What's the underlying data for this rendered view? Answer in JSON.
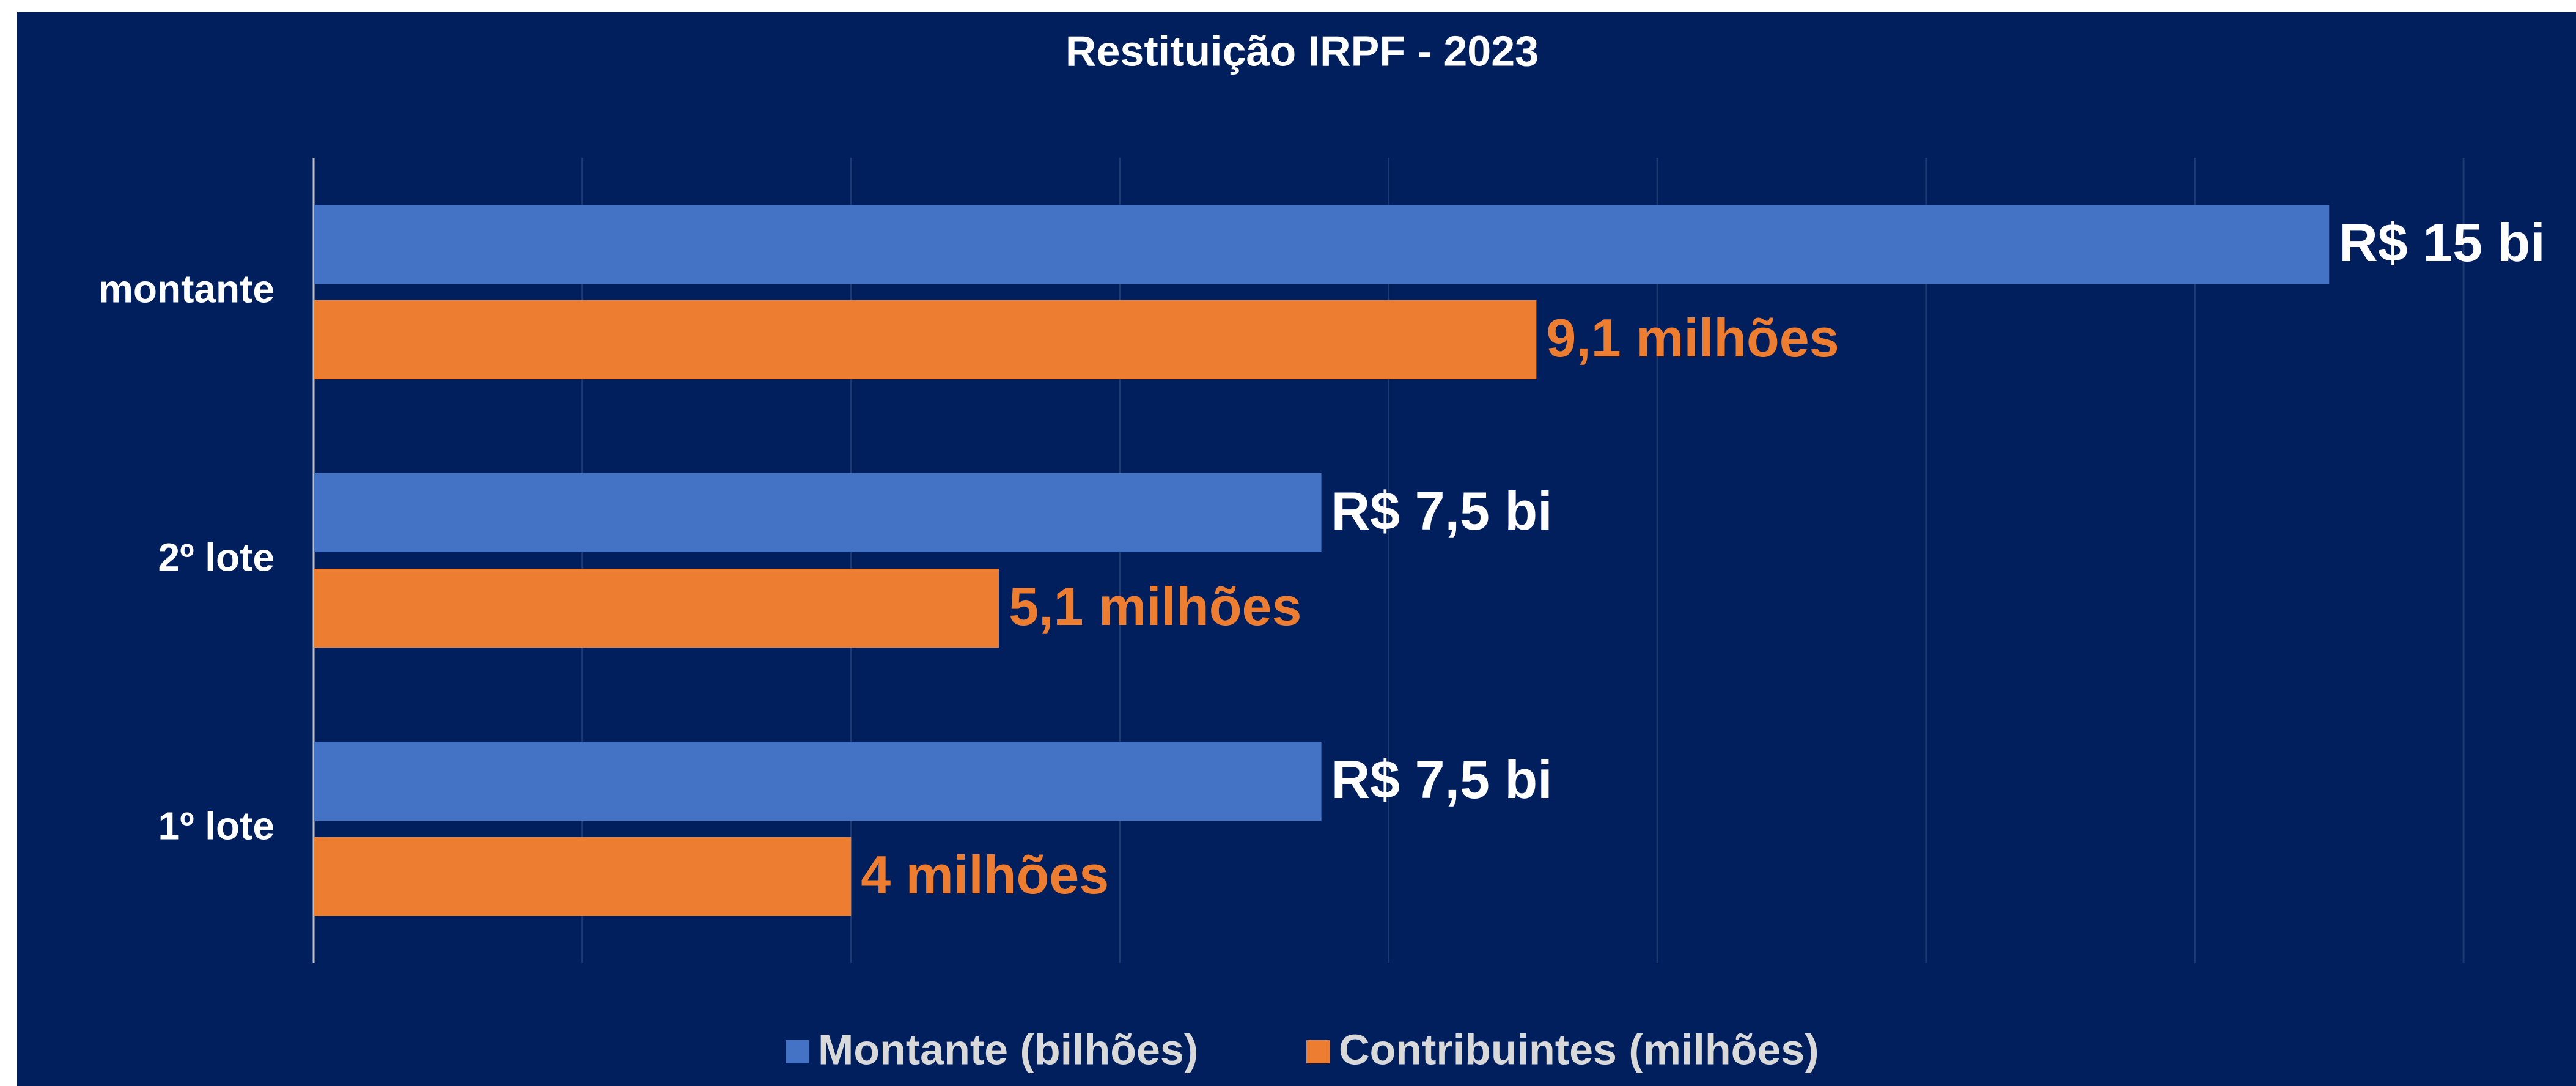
{
  "chart_data": {
    "type": "hbar",
    "title": "Restituição IRPF - 2023",
    "categories": [
      "montante",
      "2º lote",
      "1º lote"
    ],
    "series": [
      {
        "name": "Montante (bilhões)",
        "color": "#4472c4",
        "values": [
          15,
          7.5,
          7.5
        ],
        "value_labels": [
          "R$ 15 bi",
          "R$ 7,5 bi",
          "R$ 7,5 bi"
        ],
        "label_color": "#ffffff"
      },
      {
        "name": "Contribuintes (milhões)",
        "color": "#ed7d31",
        "values": [
          9.1,
          5.1,
          4
        ],
        "value_labels": [
          "9,1 milhões",
          "5,1 milhões",
          "4 milhões"
        ],
        "label_color": "#ed7d31"
      }
    ],
    "xlim": [
      0,
      16.4
    ],
    "xticks": [
      0,
      2,
      4,
      6,
      8,
      10,
      12,
      14,
      16
    ],
    "grid": true,
    "legend": "bottom"
  }
}
